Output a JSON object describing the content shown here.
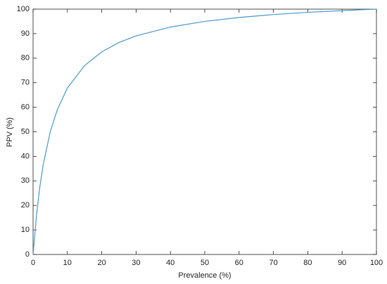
{
  "chart_data": {
    "type": "line",
    "xlabel": "Prevalence (%)",
    "ylabel": "PPV (%)",
    "series": [
      {
        "name": "PPV",
        "color": "#4d9bd1",
        "x": [
          0,
          1,
          2,
          3,
          5,
          7,
          10,
          15,
          20,
          25,
          30,
          40,
          50,
          60,
          70,
          80,
          90,
          100
        ],
        "values": [
          0,
          16.1,
          27.9,
          37.0,
          50.0,
          58.8,
          67.9,
          77.0,
          82.6,
          86.4,
          89.1,
          92.7,
          95.0,
          96.6,
          97.8,
          98.7,
          99.4,
          100
        ]
      }
    ],
    "xlim": [
      0,
      100
    ],
    "xticks": [
      0,
      10,
      20,
      30,
      40,
      50,
      60,
      70,
      80,
      90,
      100
    ],
    "ylim": [
      0,
      100
    ],
    "yticks": [
      0,
      10,
      20,
      30,
      40,
      50,
      60,
      70,
      80,
      90,
      100
    ],
    "grid": false
  }
}
